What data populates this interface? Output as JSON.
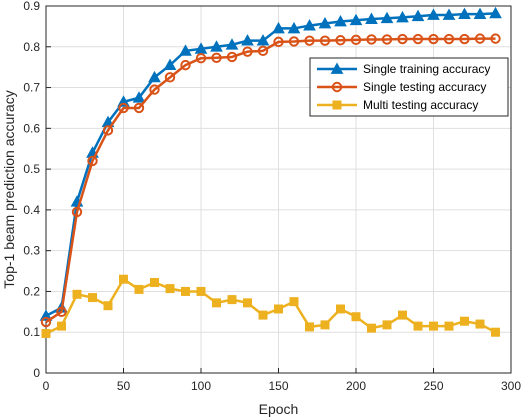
{
  "chart_data": {
    "type": "line",
    "xlabel": "Epoch",
    "ylabel": "Top-1 beam prediction accuracy",
    "xlim": [
      0,
      300
    ],
    "ylim": [
      0,
      0.9
    ],
    "xticks": [
      "0",
      "50",
      "100",
      "150",
      "200",
      "250",
      "300"
    ],
    "yticks": [
      "0",
      "0.1",
      "0.2",
      "0.3",
      "0.4",
      "0.5",
      "0.6",
      "0.7",
      "0.8",
      "0.9"
    ],
    "grid": true,
    "legend_position": "top-right",
    "x": [
      0,
      10,
      20,
      30,
      40,
      50,
      60,
      70,
      80,
      90,
      100,
      110,
      120,
      130,
      140,
      150,
      160,
      170,
      180,
      190,
      200,
      210,
      220,
      230,
      240,
      250,
      260,
      270,
      280,
      290
    ],
    "series": [
      {
        "name": "Single training accuracy",
        "color": "#0072BD",
        "marker": "triangle",
        "values": [
          0.14,
          0.16,
          0.42,
          0.54,
          0.615,
          0.665,
          0.675,
          0.725,
          0.755,
          0.79,
          0.795,
          0.8,
          0.805,
          0.815,
          0.815,
          0.845,
          0.845,
          0.852,
          0.857,
          0.862,
          0.865,
          0.868,
          0.87,
          0.872,
          0.875,
          0.878,
          0.878,
          0.88,
          0.88,
          0.882
        ]
      },
      {
        "name": "Single testing accuracy",
        "color": "#D95319",
        "marker": "circle",
        "values": [
          0.125,
          0.15,
          0.395,
          0.52,
          0.595,
          0.65,
          0.65,
          0.695,
          0.725,
          0.755,
          0.772,
          0.773,
          0.775,
          0.788,
          0.79,
          0.812,
          0.813,
          0.815,
          0.815,
          0.816,
          0.817,
          0.818,
          0.818,
          0.819,
          0.819,
          0.819,
          0.819,
          0.819,
          0.82,
          0.82
        ]
      },
      {
        "name": "Multi testing accuracy",
        "color": "#EDB120",
        "marker": "square",
        "values": [
          0.097,
          0.115,
          0.193,
          0.185,
          0.165,
          0.23,
          0.205,
          0.222,
          0.207,
          0.2,
          0.2,
          0.172,
          0.18,
          0.172,
          0.142,
          0.157,
          0.175,
          0.113,
          0.118,
          0.157,
          0.138,
          0.11,
          0.118,
          0.142,
          0.115,
          0.115,
          0.115,
          0.127,
          0.12,
          0.1
        ]
      }
    ]
  }
}
